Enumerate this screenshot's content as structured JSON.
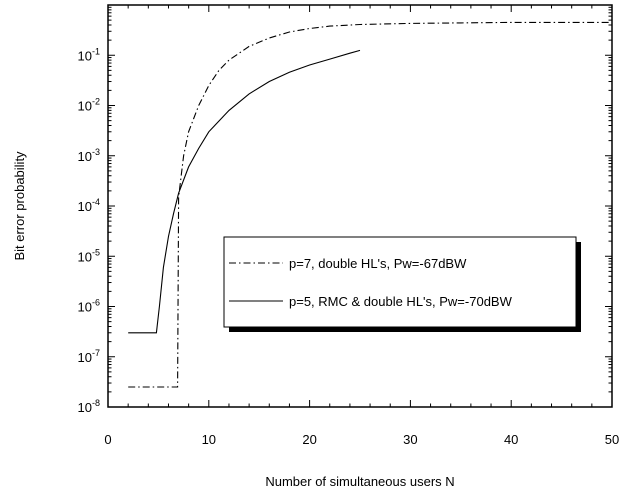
{
  "chart_data": {
    "type": "line",
    "xlabel": "Number of simultaneous users N",
    "ylabel": "Bit error probability",
    "xlim": [
      0,
      50
    ],
    "ylim": [
      1e-08,
      1
    ],
    "y_scale": "log",
    "grid": false,
    "legend_position": "center-right",
    "x_ticks": [
      {
        "value": 0,
        "label": "0"
      },
      {
        "value": 10,
        "label": "10"
      },
      {
        "value": 20,
        "label": "20"
      },
      {
        "value": 30,
        "label": "30"
      },
      {
        "value": 40,
        "label": "40"
      },
      {
        "value": 50,
        "label": "50"
      }
    ],
    "y_ticks": [
      {
        "value": 1e-08,
        "base": "10",
        "exp": "-8"
      },
      {
        "value": 1e-07,
        "base": "10",
        "exp": "-7"
      },
      {
        "value": 1e-06,
        "base": "10",
        "exp": "-6"
      },
      {
        "value": 1e-05,
        "base": "10",
        "exp": "-5"
      },
      {
        "value": 0.0001,
        "base": "10",
        "exp": "-4"
      },
      {
        "value": 0.001,
        "base": "10",
        "exp": "-3"
      },
      {
        "value": 0.01,
        "base": "10",
        "exp": "-2"
      },
      {
        "value": 0.1,
        "base": "10",
        "exp": "-1"
      }
    ],
    "series": [
      {
        "name": "p=7, double HL's, Pw=-67dBW",
        "line_style": "dash-dot",
        "color": "#000000",
        "points": [
          [
            2,
            2.5e-08
          ],
          [
            6.9,
            2.5e-08
          ],
          [
            7.0,
            0.00015
          ],
          [
            7.5,
            0.001
          ],
          [
            8,
            0.003
          ],
          [
            9,
            0.01
          ],
          [
            10,
            0.025
          ],
          [
            11,
            0.05
          ],
          [
            12,
            0.08
          ],
          [
            14,
            0.15
          ],
          [
            16,
            0.22
          ],
          [
            18,
            0.29
          ],
          [
            20,
            0.34
          ],
          [
            22,
            0.38
          ],
          [
            25,
            0.41
          ],
          [
            30,
            0.43
          ],
          [
            35,
            0.44
          ],
          [
            40,
            0.45
          ],
          [
            45,
            0.45
          ],
          [
            50,
            0.45
          ]
        ]
      },
      {
        "name": "p=5, RMC & double HL's, Pw=-70dBW",
        "line_style": "solid",
        "color": "#000000",
        "points": [
          [
            2,
            3e-07
          ],
          [
            4.8,
            3e-07
          ],
          [
            5.1,
            1e-06
          ],
          [
            5.5,
            6e-06
          ],
          [
            6,
            2.5e-05
          ],
          [
            6.5,
            7e-05
          ],
          [
            7,
            0.00018
          ],
          [
            8,
            0.0006
          ],
          [
            9,
            0.0014
          ],
          [
            10,
            0.003
          ],
          [
            12,
            0.008
          ],
          [
            14,
            0.017
          ],
          [
            16,
            0.03
          ],
          [
            18,
            0.046
          ],
          [
            20,
            0.064
          ],
          [
            22,
            0.084
          ],
          [
            24,
            0.11
          ],
          [
            25,
            0.125
          ]
        ]
      }
    ]
  }
}
